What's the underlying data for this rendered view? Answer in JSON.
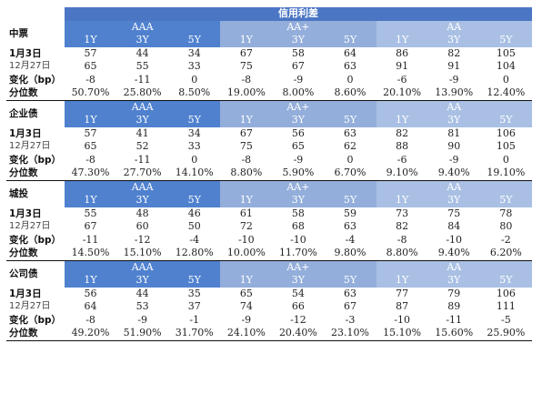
{
  "title": "信用利差",
  "group_headers": [
    "AAA",
    "AA+",
    "AA"
  ],
  "tenors": [
    "1Y",
    "3Y",
    "5Y"
  ],
  "sections": [
    {
      "name": "中票",
      "rows": [
        {
          "label": "1月3日",
          "values": [
            "57",
            "44",
            "34",
            "67",
            "58",
            "64",
            "86",
            "82",
            "105"
          ]
        },
        {
          "label": "12月27日",
          "values": [
            "65",
            "55",
            "33",
            "75",
            "67",
            "63",
            "91",
            "91",
            "104"
          ]
        },
        {
          "label": "变化（bp）",
          "values": [
            "-8",
            "-11",
            "0",
            "-8",
            "-9",
            "0",
            "-6",
            "-9",
            "0"
          ]
        },
        {
          "label": "分位数",
          "values": [
            "50.70%",
            "25.80%",
            "8.50%",
            "19.00%",
            "8.00%",
            "8.60%",
            "20.10%",
            "13.90%",
            "12.40%"
          ]
        }
      ]
    },
    {
      "name": "企业债",
      "rows": [
        {
          "label": "1月3日",
          "values": [
            "57",
            "41",
            "34",
            "67",
            "56",
            "63",
            "82",
            "81",
            "106"
          ]
        },
        {
          "label": "12月27日",
          "values": [
            "65",
            "52",
            "33",
            "75",
            "65",
            "62",
            "88",
            "90",
            "105"
          ]
        },
        {
          "label": "变化（bp）",
          "values": [
            "-8",
            "-11",
            "0",
            "-8",
            "-9",
            "0",
            "-6",
            "-9",
            "0"
          ]
        },
        {
          "label": "分位数",
          "values": [
            "47.30%",
            "27.70%",
            "14.10%",
            "8.80%",
            "5.90%",
            "6.70%",
            "9.10%",
            "9.40%",
            "19.10%"
          ]
        }
      ]
    },
    {
      "name": "城投",
      "rows": [
        {
          "label": "1月3日",
          "values": [
            "55",
            "48",
            "46",
            "61",
            "58",
            "59",
            "73",
            "75",
            "78"
          ]
        },
        {
          "label": "12月27日",
          "values": [
            "67",
            "60",
            "50",
            "72",
            "68",
            "63",
            "82",
            "84",
            "80"
          ]
        },
        {
          "label": "变化（bp）",
          "values": [
            "-11",
            "-12",
            "-4",
            "-10",
            "-10",
            "-4",
            "-8",
            "-10",
            "-2"
          ]
        },
        {
          "label": "分位数",
          "values": [
            "14.50%",
            "15.10%",
            "12.80%",
            "10.00%",
            "11.70%",
            "9.80%",
            "8.80%",
            "9.40%",
            "6.20%"
          ]
        }
      ]
    },
    {
      "name": "公司债",
      "rows": [
        {
          "label": "1月3日",
          "values": [
            "56",
            "44",
            "35",
            "65",
            "54",
            "63",
            "77",
            "79",
            "106"
          ]
        },
        {
          "label": "12月27日",
          "values": [
            "64",
            "53",
            "37",
            "74",
            "66",
            "67",
            "87",
            "89",
            "111"
          ]
        },
        {
          "label": "变化（bp）",
          "values": [
            "-8",
            "-9",
            "-1",
            "-9",
            "-12",
            "-3",
            "-10",
            "-11",
            "-5"
          ]
        },
        {
          "label": "分位数",
          "values": [
            "49.20%",
            "51.90%",
            "31.70%",
            "24.10%",
            "20.40%",
            "23.10%",
            "15.10%",
            "15.60%",
            "25.90%"
          ]
        }
      ]
    }
  ]
}
